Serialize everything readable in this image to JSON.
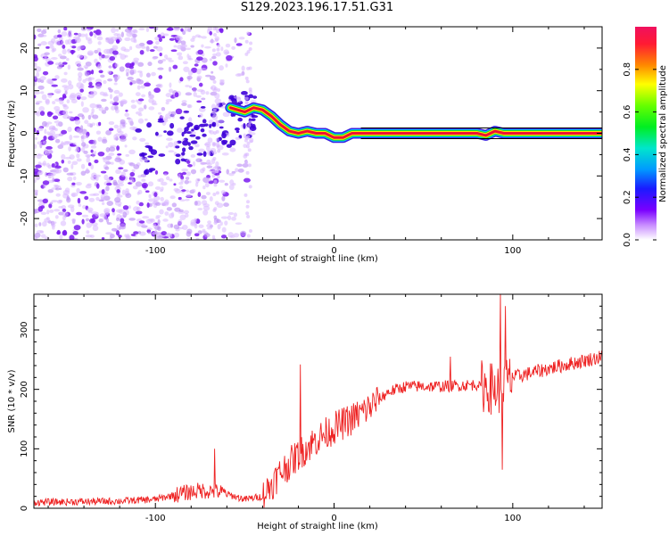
{
  "title": "S129.2023.196.17.51.G31",
  "colors": {
    "snr_line": "#ee2222",
    "spectrogram_ridge": "#ee1133",
    "scatter_low": "#d9b8ff",
    "scatter_mid": "#7a1bf0",
    "scatter_high": "#3d00d8"
  },
  "chart_data": [
    {
      "type": "heatmap",
      "title": "S129.2023.196.17.51.G31",
      "xlabel": "Height of straight line (km)",
      "ylabel": "Frequency (Hz)",
      "xlim": [
        -168,
        150
      ],
      "ylim": [
        -25,
        25
      ],
      "xticks": [
        "-100",
        "0",
        "100"
      ],
      "xtick_values": [
        -100,
        0,
        100
      ],
      "yticks": [
        "-20",
        "-10",
        "0",
        "10",
        "20"
      ],
      "ytick_values": [
        -20,
        -10,
        0,
        10,
        20
      ],
      "colorbar": {
        "label": "Normalized spectral amplitude",
        "ticks": [
          "0.0",
          "0.2",
          "0.4",
          "0.6",
          "0.8"
        ],
        "tick_values": [
          0,
          0.2,
          0.4,
          0.6,
          0.8
        ],
        "range": [
          0,
          1
        ]
      },
      "dominant_frequency_ridge": {
        "x": [
          -58,
          -50,
          -45,
          -40,
          -35,
          -30,
          -25,
          -20,
          -15,
          -10,
          -5,
          0,
          5,
          10,
          20,
          40,
          60,
          80,
          85,
          90,
          95,
          100,
          120,
          150
        ],
        "y": [
          6,
          5,
          6,
          5.5,
          4,
          2,
          0.5,
          0,
          0.5,
          0,
          0,
          -1,
          -1,
          0,
          0,
          0,
          0,
          0,
          -0.5,
          0.5,
          0,
          0,
          0,
          0
        ]
      }
    },
    {
      "type": "line",
      "xlabel": "Height of straight line (km)",
      "ylabel": "SNR (10 * v/v)",
      "xlim": [
        -168,
        150
      ],
      "ylim": [
        0,
        360
      ],
      "xticks": [
        "-100",
        "0",
        "100"
      ],
      "xtick_values": [
        -100,
        0,
        100
      ],
      "yticks": [
        "0",
        "100",
        "200",
        "300"
      ],
      "ytick_values": [
        0,
        100,
        200,
        300
      ],
      "series": [
        {
          "trend_x": [
            -168,
            -120,
            -100,
            -85,
            -75,
            -65,
            -50,
            -40,
            -30,
            -20,
            -10,
            0,
            10,
            20,
            30,
            40,
            60,
            80,
            85,
            90,
            95,
            100,
            120,
            150
          ],
          "trend_y": [
            10,
            12,
            15,
            25,
            30,
            28,
            15,
            20,
            60,
            90,
            115,
            135,
            150,
            170,
            195,
            205,
            205,
            208,
            205,
            200,
            205,
            220,
            235,
            255
          ],
          "spikes": [
            {
              "x": -67,
              "y": 100
            },
            {
              "x": -19,
              "y": 242
            },
            {
              "x": 65,
              "y": 255
            },
            {
              "x": 93,
              "y": 360
            },
            {
              "x": 94,
              "y": 65
            },
            {
              "x": 96,
              "y": 340
            }
          ]
        }
      ]
    }
  ]
}
